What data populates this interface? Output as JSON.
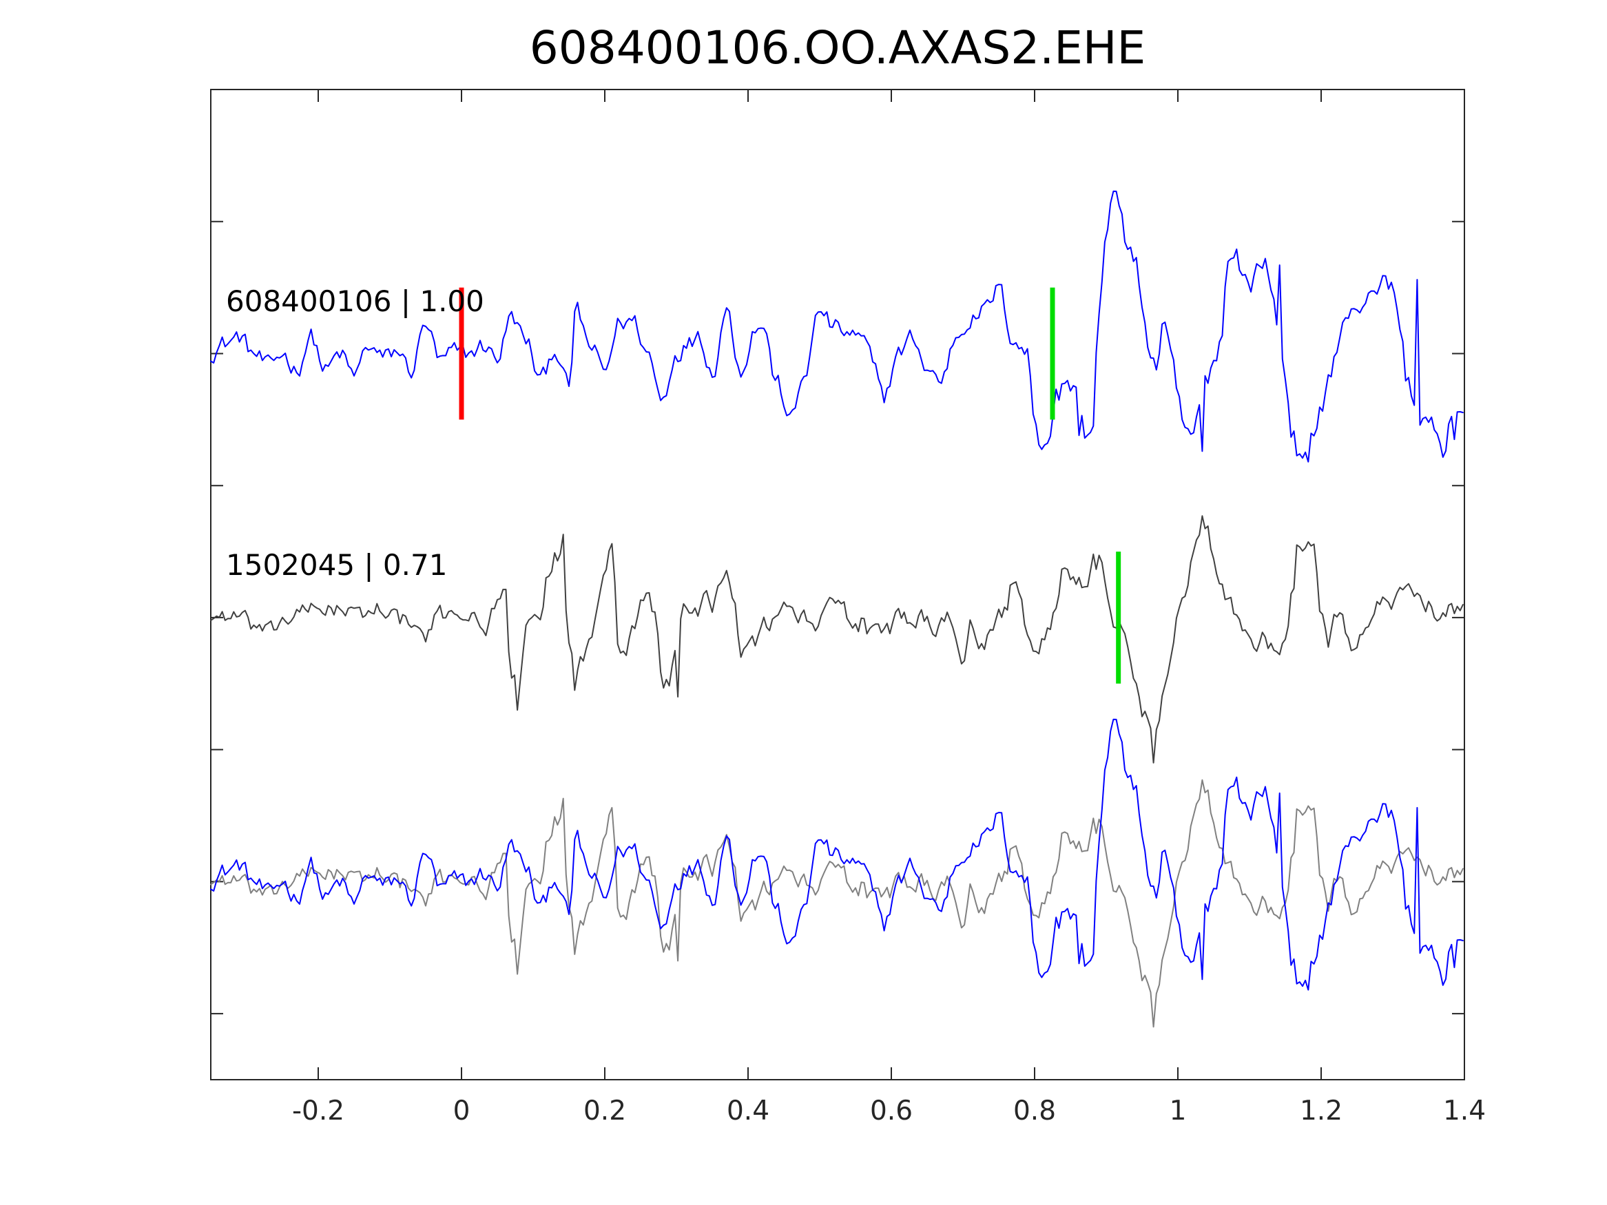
{
  "chart_data": {
    "type": "line",
    "title": "608400106.OO.AXAS2.EHE",
    "xlabel": "",
    "ylabel": "",
    "xlim": [
      -0.35,
      1.4
    ],
    "x_ticks": [
      -0.2,
      0,
      0.2,
      0.4,
      0.6,
      0.8,
      1,
      1.2,
      1.4
    ],
    "x_tick_labels": [
      "-0.2",
      "0",
      "0.2",
      "0.4",
      "0.6",
      "0.8",
      "1",
      "1.2",
      "1.4"
    ],
    "y_ticks": [
      0.5,
      1.5,
      2.5,
      3.5,
      4.5,
      5.5,
      6.5
    ],
    "ylim": [
      0,
      7.5
    ],
    "grid": false,
    "sample_interval": 0.004,
    "panels": [
      {
        "label": "608400106 | 1.00",
        "offset": 5.5,
        "series_ref": 0,
        "color": "#0000ff",
        "picks": [
          {
            "x": 0,
            "color": "#ff0000"
          },
          {
            "x": 0.825,
            "color": "#00dd00"
          }
        ]
      },
      {
        "label": "1502045 | 0.71",
        "offset": 3.5,
        "series_ref": 1,
        "color": "#404040",
        "picks": [
          {
            "x": 0.917,
            "color": "#00dd00"
          }
        ]
      },
      {
        "label": "",
        "offset": 1.5,
        "overlay": [
          {
            "series_ref": 1,
            "color": "#808080"
          },
          {
            "series_ref": 0,
            "color": "#0000ff"
          }
        ],
        "picks": []
      }
    ],
    "series": [
      {
        "control_points": [
          [
            -0.35,
            0.0
          ],
          [
            -0.33,
            0.08
          ],
          [
            -0.31,
            0.13
          ],
          [
            -0.29,
            0.0
          ],
          [
            -0.27,
            -0.09
          ],
          [
            -0.25,
            0.0
          ],
          [
            -0.23,
            -0.13
          ],
          [
            -0.21,
            0.13
          ],
          [
            -0.19,
            -0.13
          ],
          [
            -0.17,
            0.0
          ],
          [
            -0.15,
            -0.16
          ],
          [
            -0.13,
            0.06
          ],
          [
            -0.11,
            -0.03
          ],
          [
            -0.09,
            0.02
          ],
          [
            -0.07,
            -0.13
          ],
          [
            -0.05,
            0.23
          ],
          [
            -0.03,
            -0.06
          ],
          [
            -0.01,
            0.02
          ],
          [
            0.01,
            0.0
          ],
          [
            0.03,
            0.06
          ],
          [
            0.05,
            -0.03
          ],
          [
            0.07,
            0.28
          ],
          [
            0.09,
            0.1
          ],
          [
            0.11,
            -0.2
          ],
          [
            0.13,
            0.03
          ],
          [
            0.15,
            -0.25
          ],
          [
            0.16,
            0.33
          ],
          [
            0.18,
            0.05
          ],
          [
            0.2,
            -0.13
          ],
          [
            0.22,
            0.23
          ],
          [
            0.24,
            0.25
          ],
          [
            0.26,
            0.0
          ],
          [
            0.28,
            -0.35
          ],
          [
            0.3,
            0.0
          ],
          [
            0.32,
            0.08
          ],
          [
            0.33,
            0.17
          ],
          [
            0.35,
            -0.15
          ],
          [
            0.37,
            0.33
          ],
          [
            0.39,
            -0.13
          ],
          [
            0.41,
            0.18
          ],
          [
            0.42,
            0.22
          ],
          [
            0.44,
            -0.22
          ],
          [
            0.46,
            -0.5
          ],
          [
            0.48,
            -0.13
          ],
          [
            0.5,
            0.33
          ],
          [
            0.52,
            0.2
          ],
          [
            0.54,
            0.15
          ],
          [
            0.56,
            0.1
          ],
          [
            0.58,
            -0.13
          ],
          [
            0.59,
            -0.32
          ],
          [
            0.61,
            0.0
          ],
          [
            0.63,
            0.13
          ],
          [
            0.65,
            -0.13
          ],
          [
            0.67,
            -0.2
          ],
          [
            0.69,
            0.13
          ],
          [
            0.71,
            0.25
          ],
          [
            0.73,
            0.33
          ],
          [
            0.75,
            0.5
          ],
          [
            0.77,
            0.1
          ],
          [
            0.79,
            0.0
          ],
          [
            0.8,
            -0.5
          ],
          [
            0.81,
            -0.7
          ],
          [
            0.82,
            -0.6
          ],
          [
            0.83,
            -0.4
          ],
          [
            0.84,
            -0.2
          ],
          [
            0.86,
            -0.3
          ],
          [
            0.87,
            -0.6
          ],
          [
            0.88,
            -0.6
          ],
          [
            0.89,
            0.3
          ],
          [
            0.9,
            0.9
          ],
          [
            0.91,
            1.2
          ],
          [
            0.92,
            1.1
          ],
          [
            0.93,
            0.8
          ],
          [
            0.94,
            0.7
          ],
          [
            0.95,
            0.4
          ],
          [
            0.96,
            0.0
          ],
          [
            0.97,
            -0.1
          ],
          [
            0.98,
            0.2
          ],
          [
            0.99,
            0.0
          ],
          [
            1.0,
            -0.3
          ],
          [
            1.01,
            -0.6
          ],
          [
            1.02,
            -0.65
          ],
          [
            1.03,
            -0.4
          ],
          [
            1.04,
            -0.2
          ],
          [
            1.05,
            -0.05
          ],
          [
            1.06,
            0.1
          ],
          [
            1.07,
            0.7
          ],
          [
            1.08,
            0.8
          ],
          [
            1.09,
            0.6
          ],
          [
            1.1,
            0.5
          ],
          [
            1.11,
            0.6
          ],
          [
            1.12,
            0.7
          ],
          [
            1.13,
            0.5
          ],
          [
            1.14,
            0.2
          ],
          [
            1.15,
            -0.2
          ],
          [
            1.16,
            -0.6
          ],
          [
            1.17,
            -0.8
          ],
          [
            1.18,
            -0.8
          ],
          [
            1.19,
            -0.6
          ],
          [
            1.2,
            -0.4
          ],
          [
            1.21,
            -0.2
          ],
          [
            1.22,
            0.0
          ],
          [
            1.23,
            0.2
          ],
          [
            1.24,
            0.3
          ],
          [
            1.25,
            0.3
          ],
          [
            1.26,
            0.4
          ],
          [
            1.27,
            0.5
          ],
          [
            1.28,
            0.5
          ],
          [
            1.29,
            0.55
          ],
          [
            1.3,
            0.5
          ],
          [
            1.31,
            0.2
          ],
          [
            1.32,
            -0.2
          ],
          [
            1.33,
            -0.4
          ],
          [
            1.34,
            -0.5
          ],
          [
            1.35,
            -0.5
          ],
          [
            1.36,
            -0.6
          ],
          [
            1.37,
            -0.8
          ],
          [
            1.38,
            -0.5
          ],
          [
            1.39,
            -0.4
          ],
          [
            1.4,
            -0.45
          ]
        ],
        "extrema": [
          [
            0.917,
            1.12
          ],
          [
            0.817,
            -0.68
          ],
          [
            1.181,
            -0.82
          ],
          [
            1.142,
            0.67
          ],
          [
            1.111,
            0.68
          ],
          [
            1.033,
            -0.74
          ],
          [
            0.832,
            -0.27
          ],
          [
            0.864,
            -0.62
          ],
          [
            1.335,
            0.56
          ],
          [
            1.385,
            -0.65
          ]
        ]
      },
      {
        "control_points": [
          [
            -0.35,
            0.0
          ],
          [
            -0.33,
            0.02
          ],
          [
            -0.31,
            0.0
          ],
          [
            -0.29,
            -0.06
          ],
          [
            -0.27,
            -0.12
          ],
          [
            -0.25,
            -0.02
          ],
          [
            -0.23,
            0.02
          ],
          [
            -0.21,
            0.06
          ],
          [
            -0.19,
            0.08
          ],
          [
            -0.17,
            0.06
          ],
          [
            -0.15,
            0.02
          ],
          [
            -0.13,
            0.04
          ],
          [
            -0.11,
            0.08
          ],
          [
            -0.09,
            0.0
          ],
          [
            -0.07,
            -0.06
          ],
          [
            -0.05,
            -0.14
          ],
          [
            -0.03,
            0.02
          ],
          [
            -0.01,
            0.06
          ],
          [
            0.01,
            0.02
          ],
          [
            0.03,
            -0.1
          ],
          [
            0.05,
            0.1
          ],
          [
            0.06,
            0.3
          ],
          [
            0.07,
            -0.5
          ],
          [
            0.08,
            -0.5
          ],
          [
            0.09,
            -0.1
          ],
          [
            0.1,
            0.0
          ],
          [
            0.11,
            -0.1
          ],
          [
            0.12,
            0.3
          ],
          [
            0.13,
            0.45
          ],
          [
            0.14,
            0.5
          ],
          [
            0.15,
            -0.2
          ],
          [
            0.16,
            -0.4
          ],
          [
            0.17,
            -0.3
          ],
          [
            0.18,
            -0.2
          ],
          [
            0.19,
            0.1
          ],
          [
            0.2,
            0.4
          ],
          [
            0.21,
            0.6
          ],
          [
            0.22,
            -0.2
          ],
          [
            0.23,
            -0.25
          ],
          [
            0.24,
            -0.1
          ],
          [
            0.25,
            0.15
          ],
          [
            0.26,
            0.2
          ],
          [
            0.27,
            0.0
          ],
          [
            0.28,
            -0.5
          ],
          [
            0.29,
            -0.5
          ],
          [
            0.3,
            -0.2
          ],
          [
            0.31,
            0.1
          ],
          [
            0.32,
            0.1
          ],
          [
            0.33,
            0.0
          ],
          [
            0.34,
            0.2
          ],
          [
            0.35,
            0.0
          ],
          [
            0.36,
            0.3
          ],
          [
            0.37,
            0.4
          ],
          [
            0.38,
            0.1
          ],
          [
            0.39,
            -0.3
          ],
          [
            0.4,
            -0.2
          ],
          [
            0.41,
            -0.2
          ],
          [
            0.42,
            0.0
          ],
          [
            0.43,
            -0.1
          ],
          [
            0.44,
            0.0
          ],
          [
            0.45,
            0.1
          ],
          [
            0.46,
            0.1
          ],
          [
            0.47,
            0.0
          ],
          [
            0.48,
            0.0
          ],
          [
            0.49,
            -0.1
          ],
          [
            0.5,
            0.0
          ],
          [
            0.51,
            0.1
          ],
          [
            0.52,
            0.1
          ],
          [
            0.53,
            0.1
          ],
          [
            0.54,
            0.0
          ],
          [
            0.55,
            -0.1
          ],
          [
            0.56,
            0.0
          ],
          [
            0.57,
            -0.1
          ],
          [
            0.58,
            0.0
          ],
          [
            0.59,
            -0.1
          ],
          [
            0.6,
            -0.1
          ],
          [
            0.61,
            0.1
          ],
          [
            0.62,
            0.0
          ],
          [
            0.63,
            -0.1
          ],
          [
            0.64,
            0.0
          ],
          [
            0.65,
            0.0
          ],
          [
            0.66,
            -0.1
          ],
          [
            0.67,
            0.0
          ],
          [
            0.68,
            0.0
          ],
          [
            0.69,
            -0.2
          ],
          [
            0.7,
            -0.3
          ],
          [
            0.71,
            0.0
          ],
          [
            0.72,
            -0.2
          ],
          [
            0.73,
            -0.2
          ],
          [
            0.74,
            -0.1
          ],
          [
            0.75,
            0.0
          ],
          [
            0.76,
            0.1
          ],
          [
            0.77,
            0.3
          ],
          [
            0.78,
            0.1
          ],
          [
            0.79,
            -0.2
          ],
          [
            0.8,
            -0.3
          ],
          [
            0.81,
            -0.2
          ],
          [
            0.82,
            -0.1
          ],
          [
            0.83,
            0.1
          ],
          [
            0.84,
            0.4
          ],
          [
            0.85,
            0.3
          ],
          [
            0.86,
            0.3
          ],
          [
            0.87,
            0.2
          ],
          [
            0.88,
            0.4
          ],
          [
            0.89,
            0.45
          ],
          [
            0.9,
            0.2
          ],
          [
            0.91,
            -0.05
          ],
          [
            0.92,
            0.0
          ],
          [
            0.93,
            -0.2
          ],
          [
            0.94,
            -0.4
          ],
          [
            0.95,
            -0.7
          ],
          [
            0.96,
            -0.8
          ],
          [
            0.97,
            -0.85
          ],
          [
            0.98,
            -0.6
          ],
          [
            0.99,
            -0.3
          ],
          [
            1.0,
            0.1
          ],
          [
            1.01,
            0.2
          ],
          [
            1.02,
            0.5
          ],
          [
            1.03,
            0.7
          ],
          [
            1.04,
            0.75
          ],
          [
            1.05,
            0.4
          ],
          [
            1.06,
            0.3
          ],
          [
            1.07,
            0.15
          ],
          [
            1.08,
            0.0
          ],
          [
            1.09,
            -0.1
          ],
          [
            1.1,
            -0.15
          ],
          [
            1.11,
            -0.2
          ],
          [
            1.12,
            -0.1
          ],
          [
            1.13,
            -0.2
          ],
          [
            1.14,
            -0.3
          ],
          [
            1.15,
            -0.2
          ],
          [
            1.16,
            0.2
          ],
          [
            1.17,
            0.55
          ],
          [
            1.18,
            0.55
          ],
          [
            1.19,
            0.5
          ],
          [
            1.2,
            0.0
          ],
          [
            1.21,
            -0.2
          ],
          [
            1.22,
            0.0
          ],
          [
            1.23,
            0.0
          ],
          [
            1.24,
            -0.2
          ],
          [
            1.25,
            -0.2
          ],
          [
            1.26,
            -0.1
          ],
          [
            1.27,
            0.0
          ],
          [
            1.28,
            0.1
          ],
          [
            1.29,
            0.15
          ],
          [
            1.3,
            0.1
          ],
          [
            1.31,
            0.15
          ],
          [
            1.32,
            0.25
          ],
          [
            1.33,
            0.2
          ],
          [
            1.34,
            0.15
          ],
          [
            1.35,
            0.1
          ],
          [
            1.36,
            0.0
          ],
          [
            1.37,
            0.05
          ],
          [
            1.38,
            0.1
          ],
          [
            1.39,
            0.05
          ],
          [
            1.4,
            0.1
          ]
        ],
        "extrema": [
          [
            1.036,
            0.77
          ],
          [
            0.967,
            -1.1
          ],
          [
            0.078,
            -0.7
          ],
          [
            0.142,
            0.63
          ],
          [
            0.212,
            0.56
          ],
          [
            0.158,
            -0.55
          ],
          [
            0.302,
            -0.6
          ],
          [
            0.884,
            0.48
          ],
          [
            1.168,
            0.55
          ],
          [
            0.922,
            -0.08
          ]
        ]
      }
    ]
  }
}
